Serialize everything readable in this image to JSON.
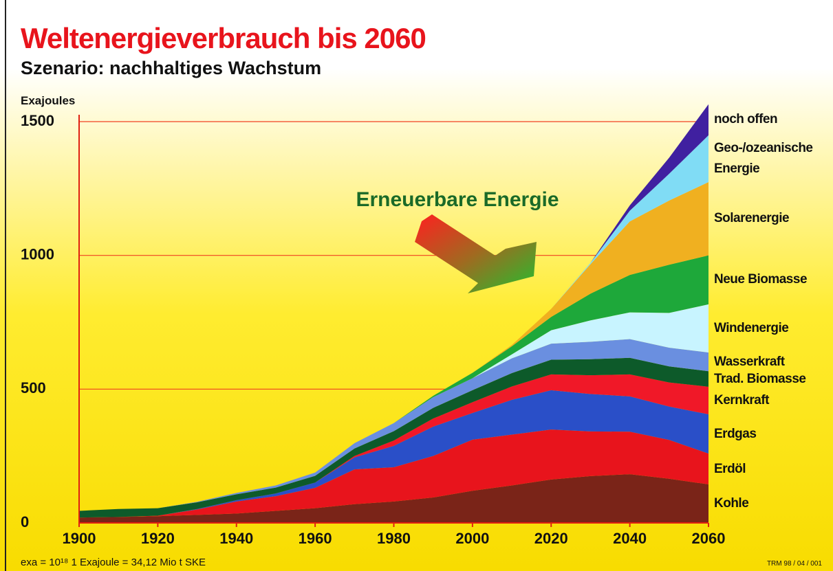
{
  "chart_data": {
    "type": "stacked-area",
    "title": "Weltenergieverbrauch bis 2060",
    "subtitle": "Szenario: nachhaltiges Wachstum",
    "y_label": "Exajoules",
    "annotation": "Erneuerbare Energie",
    "footnote": "exa = 10¹⁸ 1 Exajoule = 34,12 Mio t SKE",
    "source": "TRM 98 / 04 / 001",
    "x": [
      1900,
      1910,
      1920,
      1930,
      1940,
      1950,
      1960,
      1970,
      1980,
      1990,
      2000,
      2010,
      2020,
      2030,
      2040,
      2050,
      2060
    ],
    "xlim": [
      1900,
      2060
    ],
    "xticks": [
      1900,
      1920,
      1940,
      1960,
      1980,
      2000,
      2020,
      2040,
      2060
    ],
    "ylim": [
      0,
      1500
    ],
    "yticks": [
      0,
      500,
      1000,
      1500
    ],
    "grid": true,
    "series": [
      {
        "name": "Kohle",
        "color": "#7a2418",
        "values": [
          20,
          22,
          25,
          30,
          35,
          45,
          55,
          70,
          80,
          95,
          120,
          140,
          162,
          175,
          182,
          165,
          144
        ]
      },
      {
        "name": "Erdöl",
        "color": "#e8141c",
        "values": [
          0,
          0,
          2,
          20,
          45,
          55,
          76,
          130,
          128,
          155,
          191,
          190,
          187,
          167,
          159,
          145,
          115
        ]
      },
      {
        "name": "Erdgas",
        "color": "#2a4fc8",
        "values": [
          0,
          0,
          0,
          2,
          5,
          10,
          20,
          45,
          80,
          110,
          100,
          130,
          147,
          140,
          132,
          125,
          147
        ]
      },
      {
        "name": "Kernkraft",
        "color": "#f01828",
        "values": [
          0,
          0,
          0,
          0,
          0,
          0,
          0,
          5,
          20,
          30,
          40,
          50,
          59,
          70,
          82,
          90,
          103
        ]
      },
      {
        "name": "Trad. Biomasse",
        "color": "#0d5a2a",
        "values": [
          25,
          30,
          28,
          25,
          22,
          22,
          25,
          28,
          35,
          40,
          45,
          50,
          55,
          60,
          62,
          60,
          58
        ]
      },
      {
        "name": "Wasserkraft",
        "color": "#6a8fe0",
        "values": [
          0,
          0,
          0,
          2,
          5,
          8,
          12,
          20,
          30,
          40,
          45,
          55,
          60,
          65,
          70,
          70,
          70
        ]
      },
      {
        "name": "Windenergie",
        "color": "#c8f4ff",
        "values": [
          0,
          0,
          0,
          0,
          0,
          0,
          0,
          0,
          0,
          0,
          0,
          15,
          50,
          80,
          100,
          130,
          180
        ]
      },
      {
        "name": "Neue Biomasse",
        "color": "#1ea83a",
        "values": [
          0,
          0,
          0,
          0,
          0,
          0,
          0,
          0,
          0,
          5,
          20,
          30,
          50,
          100,
          140,
          180,
          183
        ]
      },
      {
        "name": "Solarenergie",
        "color": "#f0b020",
        "values": [
          0,
          0,
          0,
          0,
          0,
          0,
          0,
          0,
          0,
          0,
          0,
          5,
          30,
          110,
          200,
          240,
          274
        ]
      },
      {
        "name": "Geo-/ozeanische Energie",
        "color": "#80dcf5",
        "values": [
          0,
          0,
          0,
          0,
          0,
          0,
          0,
          0,
          0,
          0,
          0,
          0,
          0,
          5,
          40,
          100,
          175
        ]
      },
      {
        "name": "noch offen",
        "color": "#4020a0",
        "values": [
          0,
          0,
          0,
          0,
          0,
          0,
          0,
          0,
          0,
          0,
          0,
          0,
          0,
          0,
          20,
          60,
          116
        ]
      }
    ]
  }
}
